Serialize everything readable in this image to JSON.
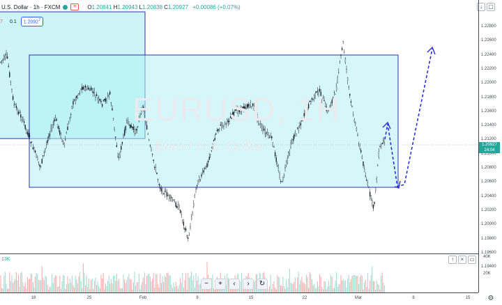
{
  "header": {
    "symbol": "U.S. Dollar · 1h · FXCM",
    "badge": "≋",
    "open_label": "O",
    "open": "1.20841",
    "high_label": "H",
    "high": "1.20943",
    "low_label": "L",
    "low": "1.20838",
    "close_label": "C",
    "close": "1.20927",
    "change": "+0.00086 (+0.07%)",
    "arrow_icon": "arrow-down-icon",
    "maximize_icon": "maximize-icon"
  },
  "indicators": {
    "a": "7",
    "b": "0.1",
    "c": "1.2092",
    "c_suffix": "7"
  },
  "price_axis": {
    "ticks": [
      "1.22800",
      "1.22600",
      "1.22400",
      "1.22200",
      "1.22000",
      "1.21800",
      "1.21600",
      "1.21400",
      "1.21200",
      "1.21000",
      "1.20800",
      "1.20600",
      "1.20400",
      "1.20200",
      "1.20000",
      "1.19800",
      "1.19600",
      "1.19400"
    ],
    "current_price": "1.20927",
    "countdown": "24:04"
  },
  "watermark": {
    "symbol": "EURUSD, 1H",
    "desc": "Euro / U.S. Dollar"
  },
  "volume": {
    "label": "13K",
    "ticks": [
      "40K",
      "20K"
    ],
    "up_icon": "arrow-up-icon",
    "close_icon": "close-icon",
    "restore_icon": "restore-icon"
  },
  "nav": {
    "zoom_out": "−",
    "zoom_in": "+",
    "scroll_left": "‹",
    "scroll_right": "›",
    "reset": "↻"
  },
  "time_axis": {
    "ticks": [
      "18",
      "25",
      "Feb",
      "8",
      "15",
      "22",
      "Mar",
      "8",
      "15"
    ]
  },
  "colors": {
    "up": "#26a69a",
    "down": "#ef5350",
    "box_fill": "#b2f0f4",
    "box_border": "#2a2fb0",
    "projection": "#2b2ecf"
  }
}
